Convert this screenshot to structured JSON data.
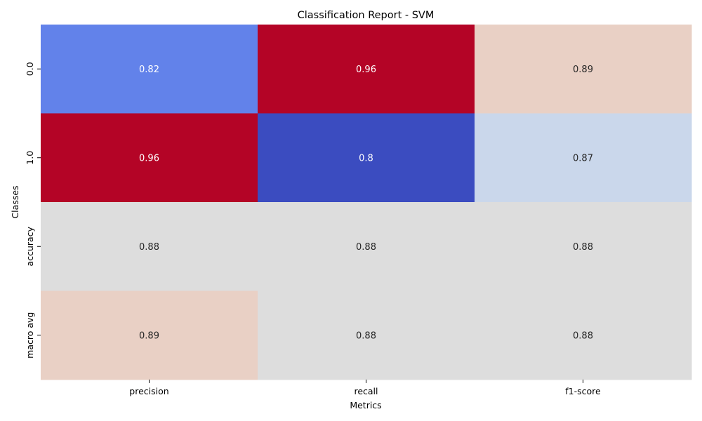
{
  "chart_data": {
    "type": "heatmap",
    "title": "Classification Report - SVM",
    "xlabel": "Metrics",
    "ylabel": "Classes",
    "x_categories": [
      "precision",
      "recall",
      "f1-score"
    ],
    "y_categories": [
      "0.0",
      "1.0",
      "accuracy",
      "macro avg"
    ],
    "values": [
      [
        0.82,
        0.96,
        0.89
      ],
      [
        0.96,
        0.8,
        0.87
      ],
      [
        0.88,
        0.88,
        0.88
      ],
      [
        0.89,
        0.88,
        0.88
      ]
    ],
    "value_labels": [
      [
        "0.82",
        "0.96",
        "0.89"
      ],
      [
        "0.96",
        "0.8",
        "0.87"
      ],
      [
        "0.88",
        "0.88",
        "0.88"
      ],
      [
        "0.89",
        "0.88",
        "0.88"
      ]
    ],
    "vmin": 0.8,
    "vmax": 0.96,
    "colormap": "coolwarm",
    "colorbar": false,
    "grid": false
  },
  "colors": {
    "background": "#ffffff",
    "text": "#000000",
    "light_text": "#ffffff",
    "dark_text": "#262626"
  }
}
